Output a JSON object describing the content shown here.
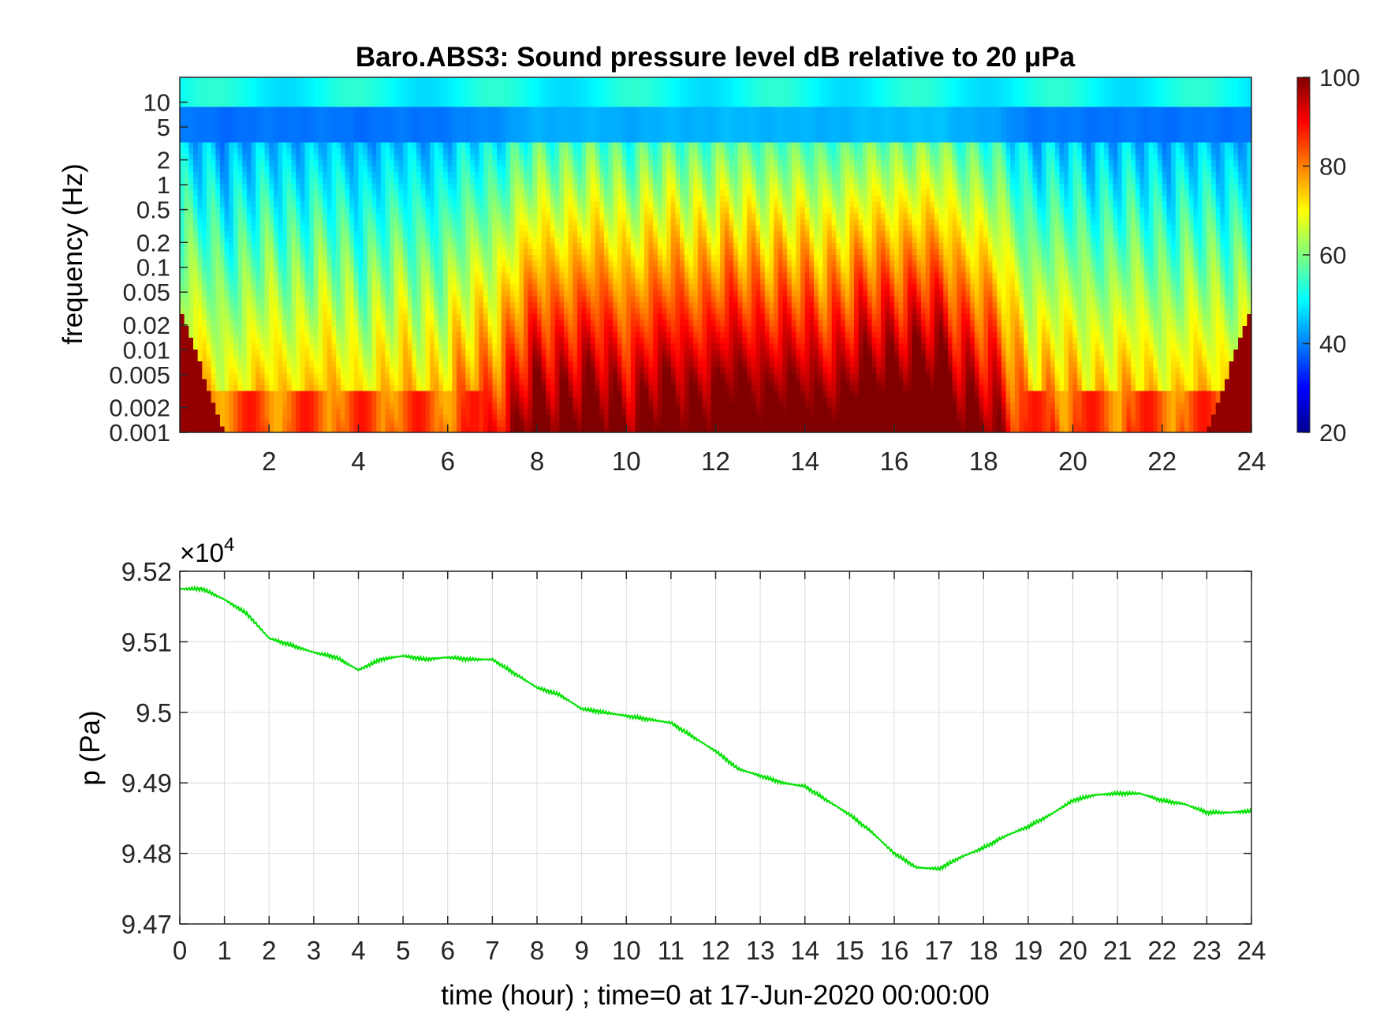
{
  "chart_data": [
    {
      "type": "heatmap",
      "title": "Baro.ABS3: Sound pressure level dB relative to 20 μPa",
      "ylabel": "frequency (Hz)",
      "xlim": [
        0,
        24
      ],
      "x_ticks": [
        2,
        4,
        6,
        8,
        10,
        12,
        14,
        16,
        18,
        20,
        22,
        24
      ],
      "y_scale": "log",
      "ylim": [
        0.001,
        20
      ],
      "y_ticks": [
        {
          "value": 10,
          "label": "10"
        },
        {
          "value": 5,
          "label": "5"
        },
        {
          "value": 2,
          "label": "2"
        },
        {
          "value": 1,
          "label": "1"
        },
        {
          "value": 0.5,
          "label": "0.5"
        },
        {
          "value": 0.2,
          "label": "0.2"
        },
        {
          "value": 0.1,
          "label": "0.1"
        },
        {
          "value": 0.05,
          "label": "0.05"
        },
        {
          "value": 0.02,
          "label": "0.02"
        },
        {
          "value": 0.01,
          "label": "0.01"
        },
        {
          "value": 0.005,
          "label": "0.005"
        },
        {
          "value": 0.002,
          "label": "0.002"
        },
        {
          "value": 0.001,
          "label": "0.001"
        }
      ],
      "colormap": "jet",
      "colorbar": {
        "range": [
          20,
          100
        ],
        "ticks": [
          20,
          40,
          60,
          80,
          100
        ]
      },
      "intensity_by_hour": {
        "hours": [
          0,
          1,
          2,
          3,
          4,
          5,
          6,
          7,
          8,
          9,
          10,
          11,
          12,
          13,
          14,
          15,
          16,
          17,
          18,
          19,
          20,
          21,
          22,
          23,
          24
        ],
        "activity": [
          0.22,
          0.12,
          0.18,
          0.22,
          0.15,
          0.2,
          0.22,
          0.45,
          0.75,
          0.8,
          0.72,
          0.8,
          0.82,
          0.85,
          0.78,
          0.82,
          0.95,
          0.92,
          0.7,
          0.28,
          0.22,
          0.2,
          0.18,
          0.18,
          0.2
        ]
      }
    },
    {
      "type": "line",
      "ylabel": "p (Pa)",
      "xlabel": "time (hour) ; time=0 at 17-Jun-2020 00:00:00",
      "y_exponent_label": "×10",
      "y_exponent": "4",
      "xlim": [
        0,
        24
      ],
      "ylim": [
        94700,
        95200
      ],
      "x_ticks": [
        0,
        1,
        2,
        3,
        4,
        5,
        6,
        7,
        8,
        9,
        10,
        11,
        12,
        13,
        14,
        15,
        16,
        17,
        18,
        19,
        20,
        21,
        22,
        23,
        24
      ],
      "y_ticks": [
        {
          "value": 94700,
          "label": "9.47"
        },
        {
          "value": 94800,
          "label": "9.48"
        },
        {
          "value": 94900,
          "label": "9.49"
        },
        {
          "value": 95000,
          "label": "9.5"
        },
        {
          "value": 95100,
          "label": "9.51"
        },
        {
          "value": 95200,
          "label": "9.52"
        }
      ],
      "grid": true,
      "series_color": "#00e000",
      "x": [
        0,
        0.5,
        1,
        1.5,
        2,
        2.5,
        3,
        3.5,
        4,
        4.5,
        5,
        5.5,
        6,
        6.5,
        7,
        7.5,
        8,
        8.5,
        9,
        9.5,
        10,
        10.5,
        11,
        11.5,
        12,
        12.5,
        13,
        13.5,
        14,
        14.5,
        15,
        15.5,
        16,
        16.5,
        17,
        17.5,
        18,
        18.5,
        19,
        19.5,
        20,
        20.5,
        21,
        21.5,
        22,
        22.5,
        23,
        23.5,
        24
      ],
      "y": [
        95175,
        95175,
        95160,
        95140,
        95105,
        95095,
        95085,
        95078,
        95060,
        95075,
        95080,
        95075,
        95078,
        95075,
        95075,
        95055,
        95035,
        95025,
        95005,
        95000,
        94995,
        94990,
        94985,
        94965,
        94945,
        94920,
        94910,
        94900,
        94895,
        94875,
        94855,
        94830,
        94800,
        94780,
        94778,
        94795,
        94808,
        94825,
        94838,
        94855,
        94875,
        94883,
        94885,
        94885,
        94875,
        94870,
        94858,
        94858,
        94860
      ]
    }
  ]
}
